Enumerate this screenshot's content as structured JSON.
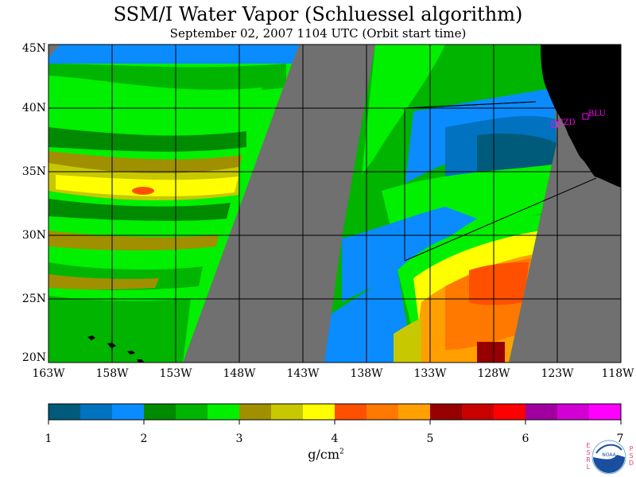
{
  "title": "SSM/I Water Vapor (Schluessel algorithm)",
  "subtitle": "September 02, 2007  1104 UTC  (Orbit start time)",
  "map": {
    "lat_labels": [
      "45N",
      "40N",
      "35N",
      "30N",
      "25N",
      "20N"
    ],
    "lon_labels": [
      "163W",
      "158W",
      "153W",
      "148W",
      "143W",
      "138W",
      "133W",
      "128W",
      "123W",
      "118W"
    ],
    "lat_range": [
      20,
      45
    ],
    "lon_range": [
      -163,
      -118
    ],
    "stations": [
      {
        "code": "CZD",
        "lon": -123.1,
        "lat": 38.6
      },
      {
        "code": "BLU",
        "lon": -121.0,
        "lat": 39.3
      }
    ],
    "no_data_color": "#707070",
    "land_color": "#000000",
    "station_color": "#ff00ff"
  },
  "colorbar": {
    "tick_labels": [
      "1",
      "2",
      "3",
      "4",
      "5",
      "6",
      "7"
    ],
    "units": "g/cm",
    "units_exp": "2",
    "colors": [
      "#005a7a",
      "#0072c0",
      "#0a8cff",
      "#008a00",
      "#00b400",
      "#00f000",
      "#a09000",
      "#c8c800",
      "#ffff00",
      "#ff5000",
      "#ff7800",
      "#ffa000",
      "#960000",
      "#c80000",
      "#ff0000",
      "#a000a0",
      "#d200d2",
      "#ff00ff"
    ]
  },
  "logo": {
    "left_text": "ESRL",
    "right_text": "PSD",
    "badge": "NOAA"
  }
}
